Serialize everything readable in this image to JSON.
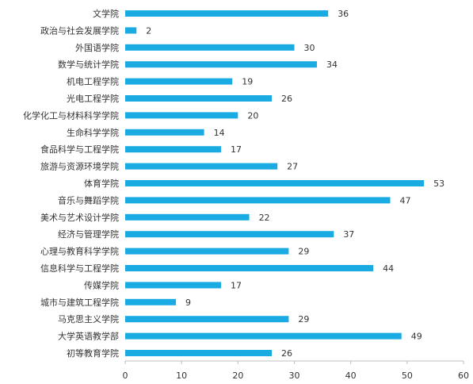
{
  "chart_data": {
    "type": "bar",
    "orientation": "horizontal",
    "categories": [
      "文学院",
      "政治与社会发展学院",
      "外国语学院",
      "数学与统计学院",
      "机电工程学院",
      "光电工程学院",
      "化学化工与材料科学学院",
      "生命科学学院",
      "食品科学与工程学院",
      "旅游与资源环境学院",
      "体育学院",
      "音乐与舞蹈学院",
      "美术与艺术设计学院",
      "经济与管理学院",
      "心理与教育科学学院",
      "信息科学与工程学院",
      "传媒学院",
      "城市与建筑工程学院",
      "马克思主义学院",
      "大学英语教学部",
      "初等教育学院"
    ],
    "values": [
      36,
      2,
      30,
      34,
      19,
      26,
      20,
      14,
      17,
      27,
      53,
      47,
      22,
      37,
      29,
      44,
      17,
      9,
      29,
      49,
      26
    ],
    "xlim": [
      0,
      60
    ],
    "xticks": [
      0,
      10,
      20,
      30,
      40,
      50,
      60
    ],
    "bar_color": "#1AABE2",
    "grid": false,
    "title": "",
    "xlabel": "",
    "ylabel": ""
  }
}
